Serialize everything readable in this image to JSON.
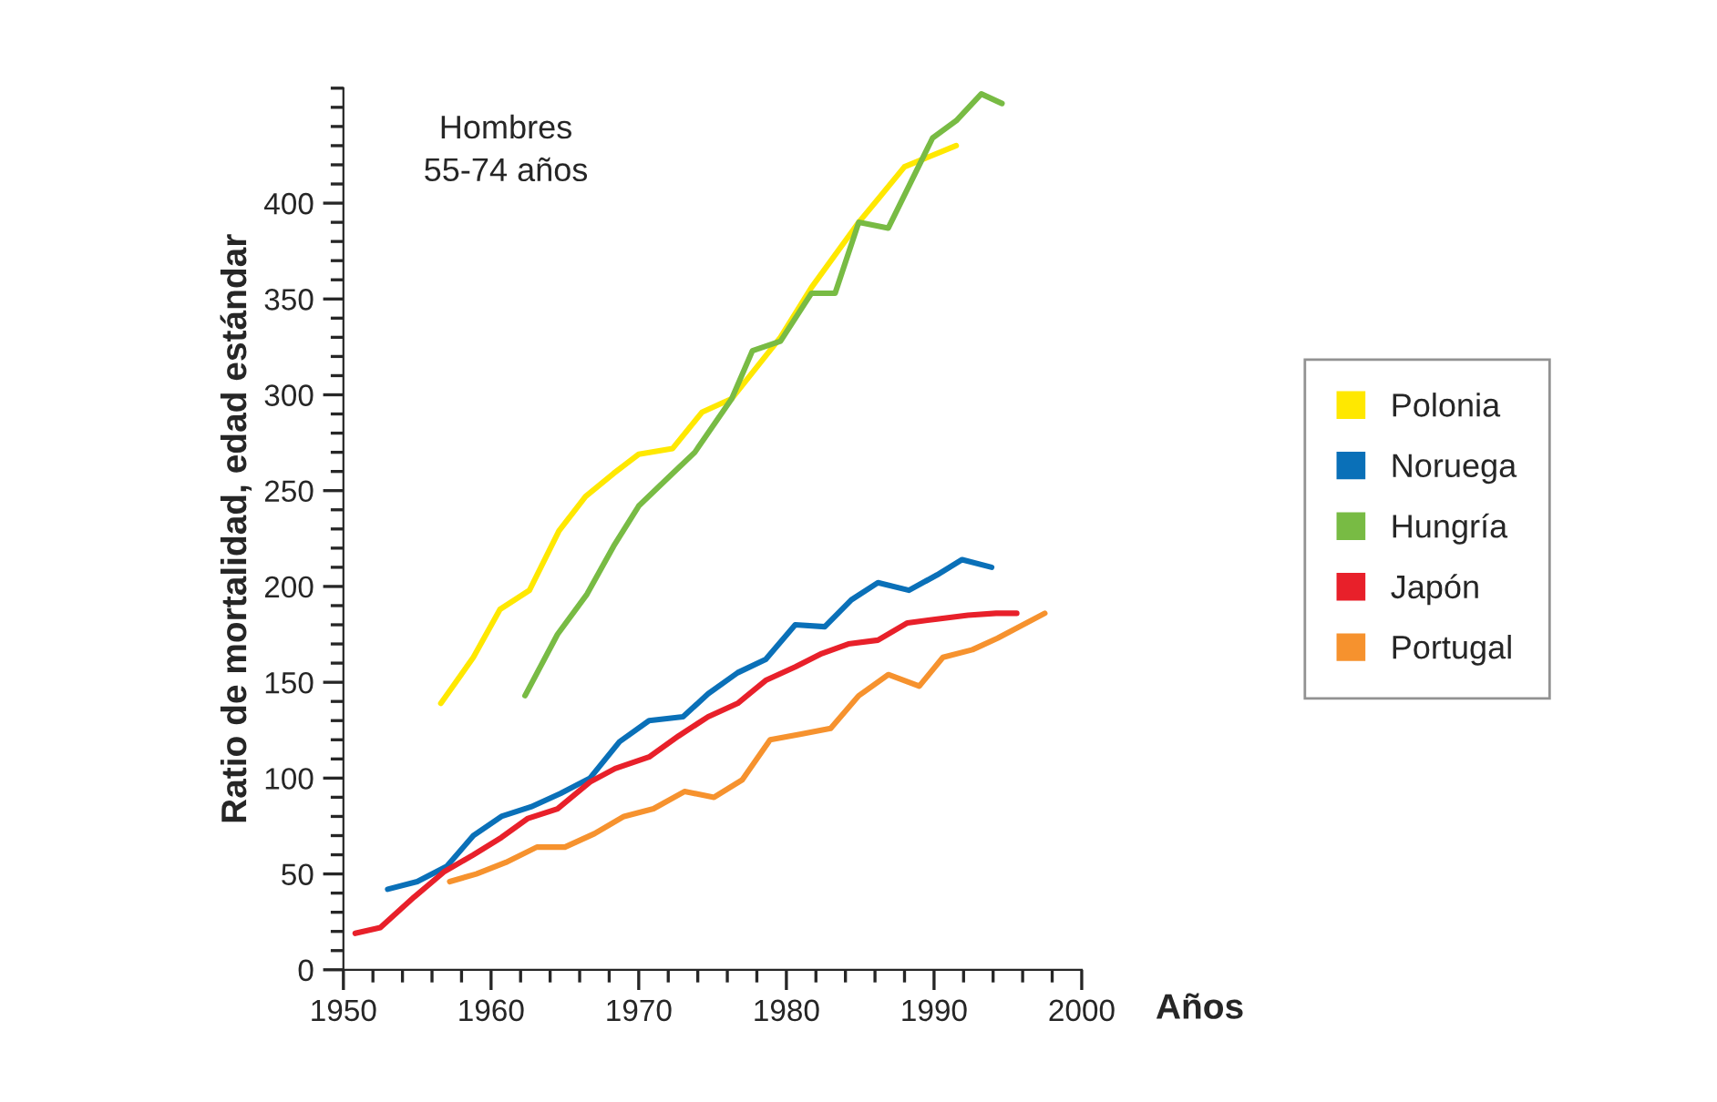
{
  "chart_data": {
    "type": "line",
    "xlabel": "Años",
    "ylabel": "Ratio de mortalidad, edad estándar",
    "annotations": [
      "Hombres\n55-74 años"
    ],
    "xlim": [
      1950,
      2000
    ],
    "xticks": [
      1950,
      1960,
      1970,
      1980,
      1990,
      2000
    ],
    "ylim": [
      0,
      460
    ],
    "yticks": [
      0,
      50,
      100,
      150,
      200,
      250,
      300,
      350,
      400
    ],
    "grid": false,
    "legend": "right",
    "marker": "none",
    "line_style": "solid",
    "series": [
      {
        "name": "Polonia",
        "color": "#ffe800",
        "x": [
          1956.6,
          1958.8,
          1960.6,
          1962.6,
          1964.6,
          1966.4,
          1968.3,
          1970,
          1972.3,
          1974.3,
          1976.3,
          1979.6,
          1981.7,
          1984.9,
          1986.3,
          1988,
          1991.5
        ],
        "values": [
          139,
          163,
          188,
          198,
          229,
          247,
          259,
          269,
          272,
          291,
          298,
          330,
          356,
          390,
          403,
          419,
          430
        ]
      },
      {
        "name": "Noruega",
        "color": "#0a70b8",
        "x": [
          1953,
          1955,
          1957,
          1958.8,
          1960.7,
          1962.7,
          1964.7,
          1966.7,
          1968.7,
          1970.7,
          1973,
          1974.7,
          1976.7,
          1978.6,
          1980.6,
          1982.6,
          1984.4,
          1986.2,
          1988.3,
          1990.2,
          1991.9,
          1993.9
        ],
        "values": [
          42,
          46,
          54,
          70,
          80,
          85,
          92,
          100,
          119,
          130,
          132,
          144,
          155,
          162,
          180,
          179,
          193,
          202,
          198,
          206,
          214,
          210
        ]
      },
      {
        "name": "Hungría",
        "color": "#78bb44",
        "x": [
          1962.3,
          1964.5,
          1966.5,
          1968.3,
          1970,
          1972.3,
          1973.8,
          1976.3,
          1977.7,
          1979.6,
          1981.7,
          1983.3,
          1984.9,
          1986.9,
          1989.9,
          1991.5,
          1993.2,
          1994.6
        ],
        "values": [
          143,
          175,
          196,
          221,
          242,
          259,
          270,
          298,
          323,
          328,
          353,
          353,
          390,
          387,
          434,
          443,
          457,
          452
        ]
      },
      {
        "name": "Japón",
        "color": "#e8202a",
        "x": [
          1950.8,
          1952.5,
          1954.8,
          1956.8,
          1958.8,
          1960.7,
          1962.5,
          1964.5,
          1966.7,
          1968.4,
          1970.7,
          1972.7,
          1974.7,
          1976.7,
          1978.6,
          1980.6,
          1982.4,
          1984.2,
          1986.2,
          1988.2,
          1990.2,
          1992.3,
          1994.2,
          1995.6
        ],
        "values": [
          19,
          22,
          38,
          51,
          60,
          69,
          79,
          84,
          98,
          105,
          111,
          122,
          132,
          139,
          151,
          158,
          165,
          170,
          172,
          181,
          183,
          185,
          186,
          186
        ]
      },
      {
        "name": "Portugal",
        "color": "#f6922e",
        "x": [
          1957.2,
          1959,
          1961,
          1963.1,
          1965,
          1967,
          1969,
          1971,
          1973.1,
          1975.1,
          1977,
          1978.9,
          1981,
          1983,
          1984.9,
          1986.9,
          1989,
          1990.6,
          1992.6,
          1994.3,
          1997.5
        ],
        "values": [
          46,
          50,
          56,
          64,
          64,
          71,
          80,
          84,
          93,
          90,
          99,
          120,
          123,
          126,
          143,
          154,
          148,
          163,
          167,
          173,
          186
        ]
      }
    ]
  }
}
